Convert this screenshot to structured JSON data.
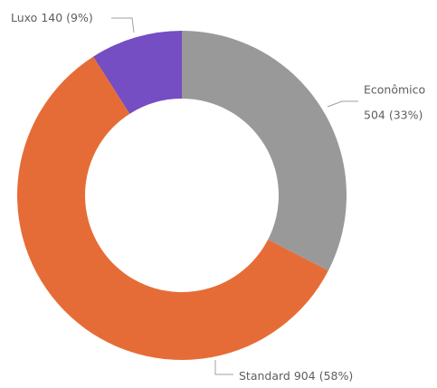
{
  "chart_data": {
    "type": "donut",
    "categories": [
      "Econômico",
      "Standard",
      "Luxo"
    ],
    "values": [
      504,
      904,
      140
    ],
    "value_labels": [
      "504 (33%)",
      "904 (58%)",
      "140 (9%)"
    ],
    "colors": [
      "#999999",
      "#e66c37",
      "#744ec2"
    ]
  }
}
